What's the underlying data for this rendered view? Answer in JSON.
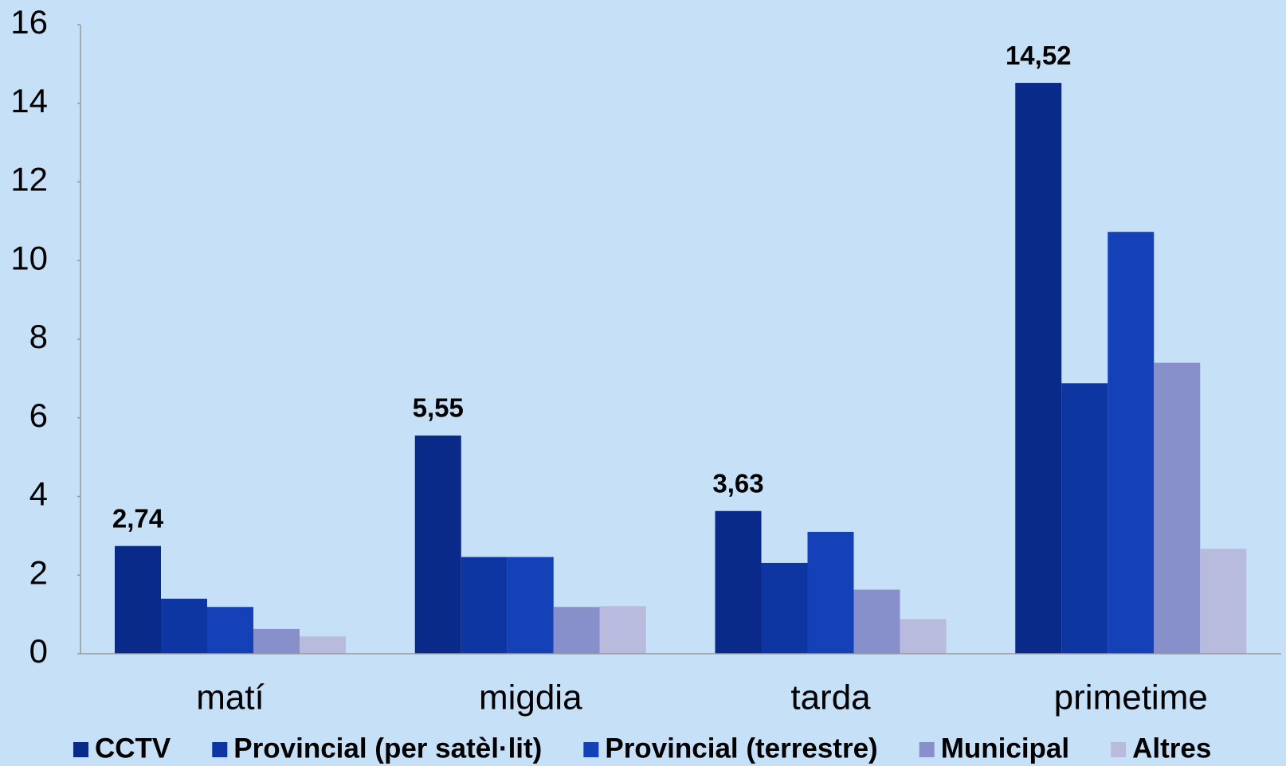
{
  "chart_data": {
    "type": "bar",
    "categories": [
      "matí",
      "migdia",
      "tarda",
      "primetime"
    ],
    "series": [
      {
        "name": "CCTV",
        "color": "#0a2a8a",
        "values": [
          2.74,
          5.55,
          3.63,
          14.52
        ],
        "value_labels": [
          "2,74",
          "5,55",
          "3,63",
          "14,52"
        ]
      },
      {
        "name": "Provincial (per satèl·lit)",
        "color": "#0d36a2",
        "values": [
          1.4,
          2.46,
          2.31,
          6.88
        ]
      },
      {
        "name": "Provincial (terrestre)",
        "color": "#1541b8",
        "values": [
          1.19,
          2.46,
          3.1,
          10.73
        ]
      },
      {
        "name": "Municipal",
        "color": "#8890cc",
        "values": [
          0.63,
          1.19,
          1.63,
          7.4
        ]
      },
      {
        "name": "Altres",
        "color": "#b8bade",
        "values": [
          0.44,
          1.21,
          0.88,
          2.67
        ]
      }
    ],
    "ylim": [
      0,
      16
    ],
    "yticks": [
      0,
      2,
      4,
      6,
      8,
      10,
      12,
      14,
      16
    ],
    "legend": "bottom"
  }
}
